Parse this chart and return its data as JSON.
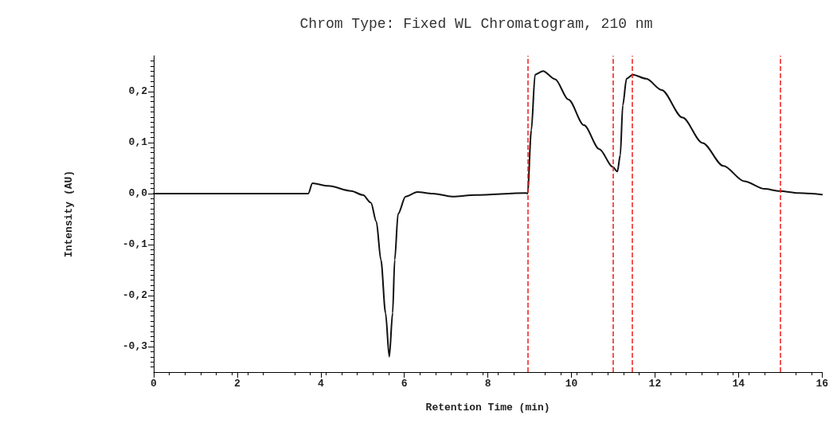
{
  "chart_data": {
    "type": "line",
    "title": "Chrom Type: Fixed WL Chromatogram, 210 nm",
    "xlabel": "Retention Time (min)",
    "ylabel": "Intensity (AU)",
    "series": [
      {
        "color": "#111111",
        "x": [
          0,
          1,
          2,
          3,
          3.7,
          3.8,
          4.18,
          4.73,
          5.01,
          5.2,
          5.33,
          5.44,
          5.55,
          5.64,
          5.72,
          5.77,
          5.85,
          6.03,
          6.31,
          6.68,
          7.15,
          7.7,
          8.91,
          8.95,
          9.04,
          9.13,
          9.32,
          9.61,
          9.93,
          10.3,
          10.67,
          10.99,
          11.1,
          11.17,
          11.23,
          11.32,
          11.47,
          11.79,
          12.16,
          12.66,
          13.14,
          13.64,
          14.14,
          14.63,
          14.98,
          15.44,
          16
        ],
        "values": [
          0,
          0,
          0,
          0,
          0,
          0.02,
          0.015,
          0.005,
          -0.003,
          -0.018,
          -0.055,
          -0.13,
          -0.234,
          -0.32,
          -0.234,
          -0.13,
          -0.04,
          -0.006,
          0.003,
          0,
          -0.006,
          -0.003,
          0.001,
          0,
          0.124,
          0.233,
          0.24,
          0.224,
          0.184,
          0.134,
          0.087,
          0.052,
          0.043,
          0.075,
          0.173,
          0.225,
          0.233,
          0.225,
          0.203,
          0.149,
          0.099,
          0.054,
          0.024,
          0.009,
          0.005,
          0.001,
          -0.002
        ]
      }
    ],
    "xlim": [
      0,
      16
    ],
    "xticks": [
      0,
      2,
      4,
      6,
      8,
      10,
      12,
      14,
      16
    ],
    "ylim": [
      -0.35,
      0.27
    ],
    "yticks": [
      {
        "value": -0.3,
        "label": "-0,3"
      },
      {
        "value": -0.2,
        "label": "-0,2"
      },
      {
        "value": -0.1,
        "label": "-0,1"
      },
      {
        "value": 0,
        "label": "0,0"
      },
      {
        "value": 0.1,
        "label": "0,1"
      },
      {
        "value": 0.2,
        "label": "0,2"
      }
    ],
    "ref_lines": [
      {
        "axis": "x",
        "value": 8.95,
        "color": "#ee1c1c",
        "line_style": "dashed"
      },
      {
        "axis": "x",
        "value": 11.0,
        "color": "#ee1c1c",
        "line_style": "dashed"
      },
      {
        "axis": "x",
        "value": 11.45,
        "color": "#ee1c1c",
        "line_style": "dashed"
      },
      {
        "axis": "x",
        "value": 15.0,
        "color": "#ee1c1c",
        "line_style": "dashed"
      }
    ],
    "grid": false,
    "marker": "none",
    "line_style": "solid"
  }
}
